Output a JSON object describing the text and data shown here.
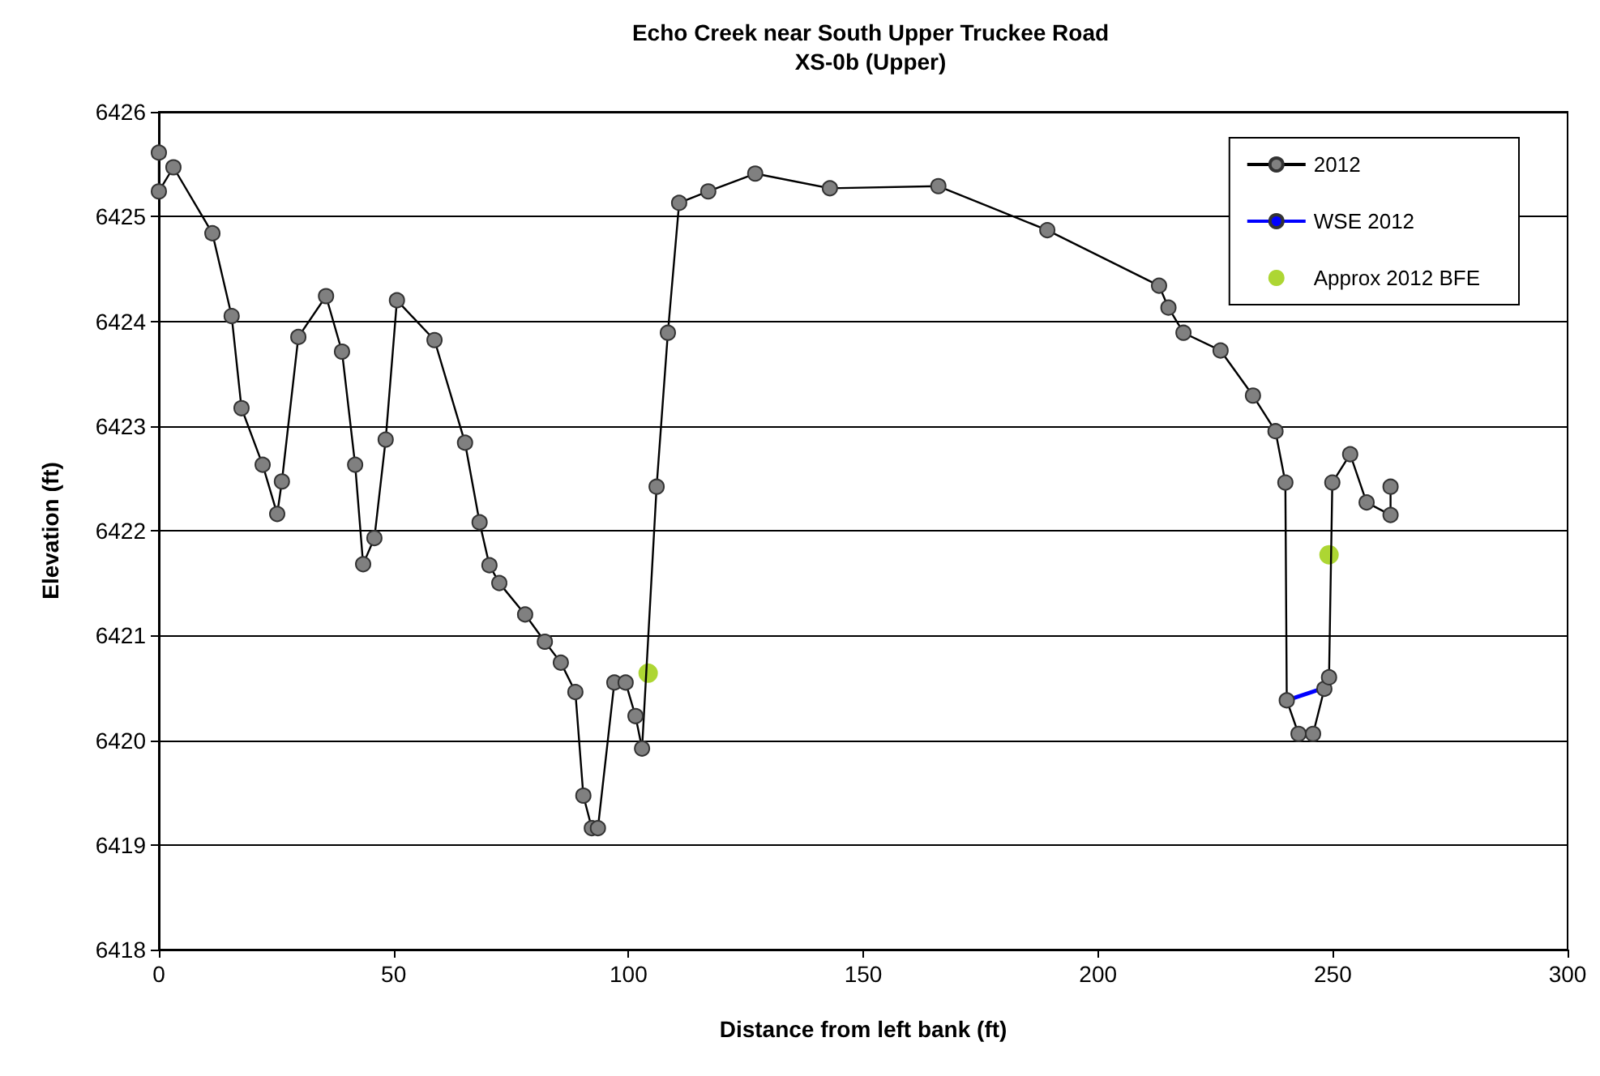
{
  "chart_data": {
    "type": "line",
    "title": "Echo Creek near South Upper Truckee Road",
    "subtitle": "XS-0b (Upper)",
    "xlabel": "Distance from left bank (ft)",
    "ylabel": "Elevation (ft)",
    "xlim": [
      0,
      300
    ],
    "xticks": [
      0,
      50,
      100,
      150,
      200,
      250,
      300
    ],
    "ylim": [
      6418,
      6426
    ],
    "yticks": [
      6418,
      6419,
      6420,
      6421,
      6422,
      6423,
      6424,
      6425,
      6426
    ],
    "grid": "y",
    "legend": "top right",
    "marker": "circle",
    "line_style": "solid",
    "series": [
      {
        "name": "2012",
        "color": "#808080",
        "x": [
          0,
          0,
          3.1,
          11.4,
          15.5,
          17.6,
          22.1,
          25.2,
          26.2,
          29.7,
          35.6,
          39.0,
          41.8,
          43.5,
          45.9,
          48.3,
          50.7,
          58.7,
          65.2,
          68.3,
          70.4,
          72.5,
          78.0,
          82.2,
          85.6,
          88.7,
          90.4,
          92.2,
          93.5,
          97.0,
          99.4,
          101.5,
          102.9,
          106.0,
          108.4,
          110.8,
          117.0,
          127.0,
          142.9,
          166.0,
          189.2,
          213.0,
          215.0,
          218.2,
          226.1,
          233.0,
          237.8,
          239.9,
          240.2,
          242.7,
          245.8,
          248.2,
          249.2,
          249.9,
          253.7,
          257.2,
          262.3,
          262.3
        ],
        "values": [
          6425.61,
          6425.24,
          6425.47,
          6424.84,
          6424.05,
          6423.17,
          6422.63,
          6422.16,
          6422.47,
          6423.85,
          6424.24,
          6423.71,
          6422.63,
          6421.68,
          6421.93,
          6422.87,
          6424.2,
          6423.82,
          6422.84,
          6422.08,
          6421.67,
          6421.5,
          6421.2,
          6420.94,
          6420.74,
          6420.46,
          6419.47,
          6419.16,
          6419.16,
          6420.55,
          6420.55,
          6420.23,
          6419.92,
          6422.42,
          6423.89,
          6425.13,
          6425.24,
          6425.41,
          6425.27,
          6425.29,
          6424.87,
          6424.34,
          6424.13,
          6423.89,
          6423.72,
          6423.29,
          6422.95,
          6422.46,
          6420.38,
          6420.06,
          6420.06,
          6420.49,
          6420.6,
          6422.46,
          6422.73,
          6422.27,
          6422.15,
          6422.42
        ]
      },
      {
        "name": "WSE 2012",
        "type": "line",
        "marker": "none",
        "color": "#0000ff",
        "x": [
          240.2,
          247.6
        ],
        "values": [
          6420.38,
          6420.49
        ]
      },
      {
        "name": "Approx 2012 BFE",
        "type": "scatter",
        "color": "#99cc00",
        "x": [
          104.2,
          249.2
        ],
        "values": [
          6420.64,
          6421.77
        ]
      }
    ]
  }
}
